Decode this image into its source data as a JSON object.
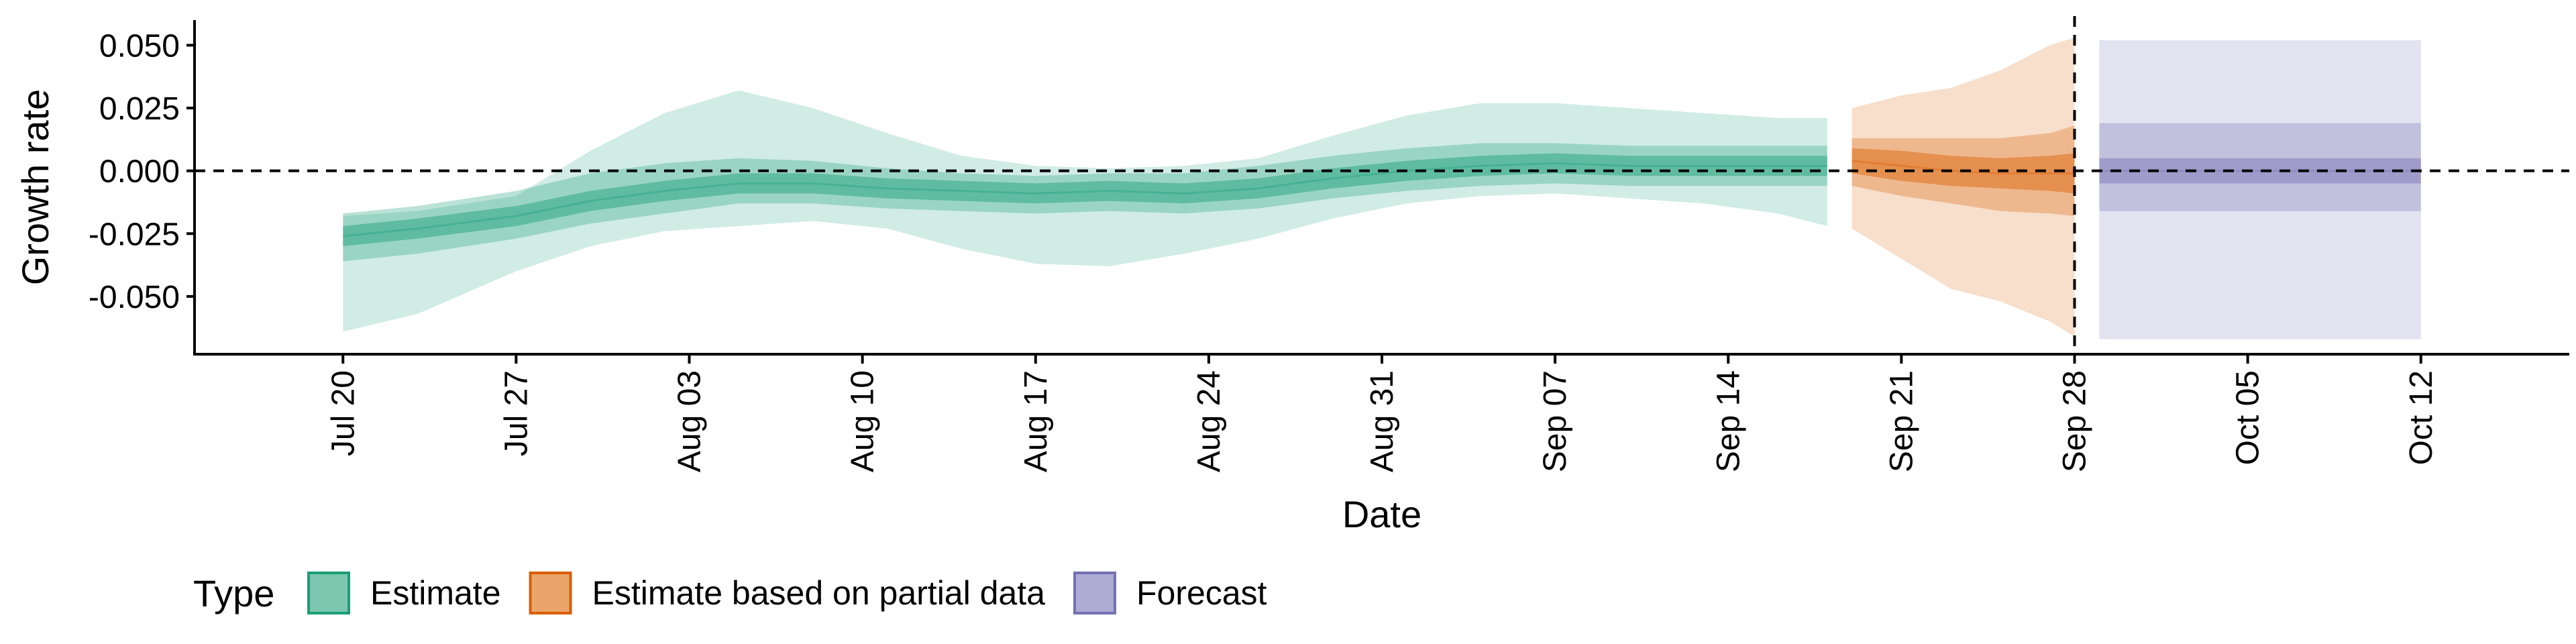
{
  "chart_data": {
    "type": "area",
    "xlabel": "Date",
    "ylabel": "Growth rate",
    "ylim": [
      -0.073,
      0.06
    ],
    "xlim": [
      "2020-07-14",
      "2020-10-18"
    ],
    "y_ticks": [
      {
        "value": 0.05,
        "label": "0.050"
      },
      {
        "value": 0.025,
        "label": "0.025"
      },
      {
        "value": 0.0,
        "label": "0.000"
      },
      {
        "value": -0.025,
        "label": "-0.025"
      },
      {
        "value": -0.05,
        "label": "-0.050"
      }
    ],
    "x_ticks": [
      {
        "date": "2020-07-20",
        "label": "Jul 20"
      },
      {
        "date": "2020-07-27",
        "label": "Jul 27"
      },
      {
        "date": "2020-08-03",
        "label": "Aug 03"
      },
      {
        "date": "2020-08-10",
        "label": "Aug 10"
      },
      {
        "date": "2020-08-17",
        "label": "Aug 17"
      },
      {
        "date": "2020-08-24",
        "label": "Aug 24"
      },
      {
        "date": "2020-08-31",
        "label": "Aug 31"
      },
      {
        "date": "2020-09-07",
        "label": "Sep 07"
      },
      {
        "date": "2020-09-14",
        "label": "Sep 14"
      },
      {
        "date": "2020-09-21",
        "label": "Sep 21"
      },
      {
        "date": "2020-09-28",
        "label": "Sep 28"
      },
      {
        "date": "2020-10-05",
        "label": "Oct 05"
      },
      {
        "date": "2020-10-12",
        "label": "Oct 12"
      }
    ],
    "reference_lines": [
      {
        "orientation": "horizontal",
        "y": 0.0,
        "style": "dashed"
      },
      {
        "orientation": "vertical",
        "x": "2020-09-28",
        "style": "dashed"
      }
    ],
    "grid": false,
    "legend": {
      "title": "Type",
      "position": "bottom-left",
      "entries": [
        {
          "label": "Estimate",
          "fill": "#7CC7AE",
          "stroke": "#1B9E77"
        },
        {
          "label": "Estimate based on partial data",
          "fill": "#EBA46A",
          "stroke": "#D95F02"
        },
        {
          "label": "Forecast",
          "fill": "#ADAAD3",
          "stroke": "#7570B3"
        }
      ]
    },
    "series": [
      {
        "name": "Estimate",
        "color": "#1B9E77",
        "x": [
          "2020-07-20",
          "2020-07-23",
          "2020-07-27",
          "2020-07-30",
          "2020-08-02",
          "2020-08-05",
          "2020-08-08",
          "2020-08-11",
          "2020-08-14",
          "2020-08-17",
          "2020-08-20",
          "2020-08-23",
          "2020-08-26",
          "2020-08-29",
          "2020-09-01",
          "2020-09-04",
          "2020-09-07",
          "2020-09-10",
          "2020-09-13",
          "2020-09-16",
          "2020-09-18"
        ],
        "median": [
          -0.026,
          -0.023,
          -0.018,
          -0.012,
          -0.008,
          -0.005,
          -0.005,
          -0.007,
          -0.008,
          -0.009,
          -0.008,
          -0.009,
          -0.007,
          -0.003,
          0.0,
          0.002,
          0.003,
          0.002,
          0.002,
          0.002,
          0.002
        ],
        "inner_lower": [
          -0.03,
          -0.027,
          -0.022,
          -0.016,
          -0.012,
          -0.009,
          -0.009,
          -0.011,
          -0.012,
          -0.013,
          -0.012,
          -0.013,
          -0.011,
          -0.007,
          -0.004,
          -0.002,
          -0.001,
          -0.002,
          -0.002,
          -0.002,
          -0.002
        ],
        "inner_upper": [
          -0.022,
          -0.019,
          -0.014,
          -0.008,
          -0.004,
          -0.001,
          -0.001,
          -0.003,
          -0.004,
          -0.005,
          -0.004,
          -0.005,
          -0.003,
          0.001,
          0.004,
          0.006,
          0.007,
          0.006,
          0.006,
          0.006,
          0.006
        ],
        "mid_lower": [
          -0.036,
          -0.033,
          -0.027,
          -0.021,
          -0.017,
          -0.013,
          -0.013,
          -0.015,
          -0.016,
          -0.017,
          -0.016,
          -0.017,
          -0.015,
          -0.011,
          -0.008,
          -0.006,
          -0.005,
          -0.006,
          -0.006,
          -0.006,
          -0.006
        ],
        "mid_upper": [
          -0.017,
          -0.014,
          -0.008,
          -0.001,
          0.003,
          0.005,
          0.004,
          0.001,
          -0.001,
          -0.002,
          -0.001,
          -0.001,
          0.002,
          0.006,
          0.009,
          0.011,
          0.011,
          0.01,
          0.01,
          0.01,
          0.01
        ],
        "outer_lower": [
          -0.064,
          -0.057,
          -0.04,
          -0.03,
          -0.024,
          -0.022,
          -0.02,
          -0.023,
          -0.031,
          -0.037,
          -0.038,
          -0.033,
          -0.027,
          -0.019,
          -0.013,
          -0.01,
          -0.009,
          -0.011,
          -0.013,
          -0.017,
          -0.022
        ],
        "outer_upper": [
          -0.018,
          -0.016,
          -0.01,
          0.008,
          0.023,
          0.032,
          0.025,
          0.015,
          0.006,
          0.002,
          0.001,
          0.002,
          0.005,
          0.014,
          0.022,
          0.027,
          0.027,
          0.025,
          0.023,
          0.021,
          0.021
        ]
      },
      {
        "name": "Estimate based on partial data",
        "color": "#D95F02",
        "x": [
          "2020-09-19",
          "2020-09-21",
          "2020-09-23",
          "2020-09-25",
          "2020-09-27",
          "2020-09-28"
        ],
        "median": [
          0.004,
          0.002,
          0.0,
          -0.001,
          -0.001,
          -0.001
        ],
        "inner_lower": [
          -0.001,
          -0.004,
          -0.006,
          -0.007,
          -0.008,
          -0.009
        ],
        "inner_upper": [
          0.009,
          0.008,
          0.006,
          0.005,
          0.006,
          0.007
        ],
        "mid_lower": [
          -0.006,
          -0.01,
          -0.013,
          -0.016,
          -0.017,
          -0.018
        ],
        "mid_upper": [
          0.013,
          0.013,
          0.013,
          0.013,
          0.015,
          0.018
        ],
        "outer_lower": [
          -0.023,
          -0.035,
          -0.047,
          -0.052,
          -0.06,
          -0.066
        ],
        "outer_upper": [
          0.025,
          0.03,
          0.033,
          0.04,
          0.05,
          0.053
        ]
      },
      {
        "name": "Forecast",
        "color": "#7570B3",
        "x": [
          "2020-09-29",
          "2020-10-12"
        ],
        "median": [
          0.0,
          0.0
        ],
        "inner_lower": [
          -0.005,
          -0.005
        ],
        "inner_upper": [
          0.005,
          0.005
        ],
        "mid_lower": [
          -0.016,
          -0.016
        ],
        "mid_upper": [
          0.019,
          0.019
        ],
        "outer_lower": [
          -0.067,
          -0.067
        ],
        "outer_upper": [
          0.052,
          0.052
        ]
      }
    ]
  }
}
